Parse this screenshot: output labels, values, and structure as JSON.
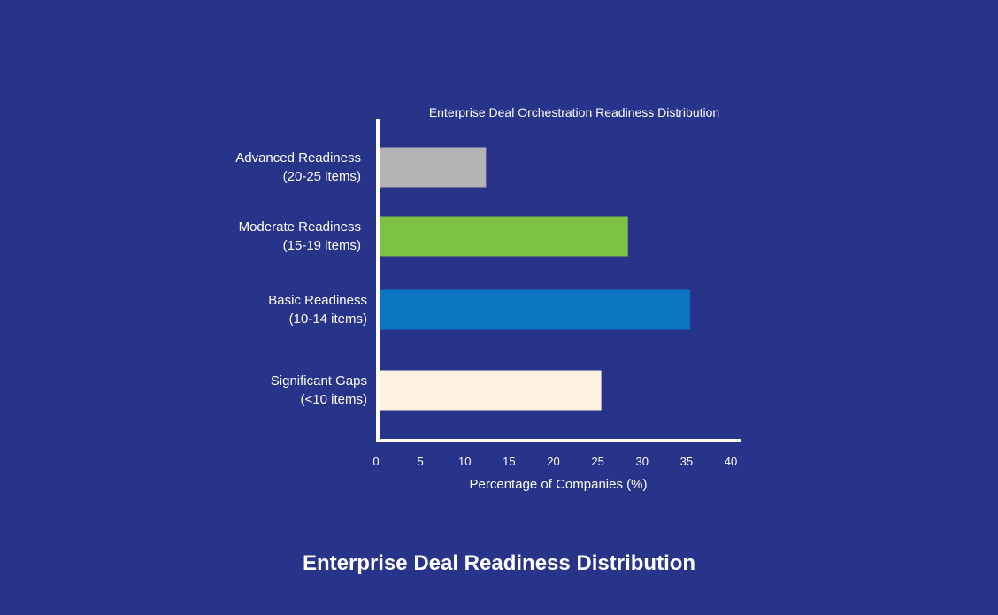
{
  "caption": "Enterprise Deal Readiness Distribution",
  "chart_data": {
    "type": "bar",
    "orientation": "horizontal",
    "title": "Enterprise Deal Orchestration Readiness Distribution",
    "xlabel": "Percentage of Companies (%)",
    "ylabel": "",
    "xlim": [
      0,
      40
    ],
    "xticks": [
      0,
      5,
      10,
      15,
      20,
      25,
      30,
      35,
      40
    ],
    "grid": false,
    "legend": "none",
    "categories": [
      [
        "Advanced Readiness",
        "(20-25 items)"
      ],
      [
        "Moderate Readiness",
        "(15-19 items)"
      ],
      [
        "Basic Readiness",
        "(10-14 items)"
      ],
      [
        "Significant Gaps",
        "(<10 items)"
      ]
    ],
    "values": [
      12,
      28,
      35,
      25
    ],
    "colors": [
      "#b3b3b3",
      "#7dc242",
      "#0b77c2",
      "#fdf1e0"
    ]
  }
}
